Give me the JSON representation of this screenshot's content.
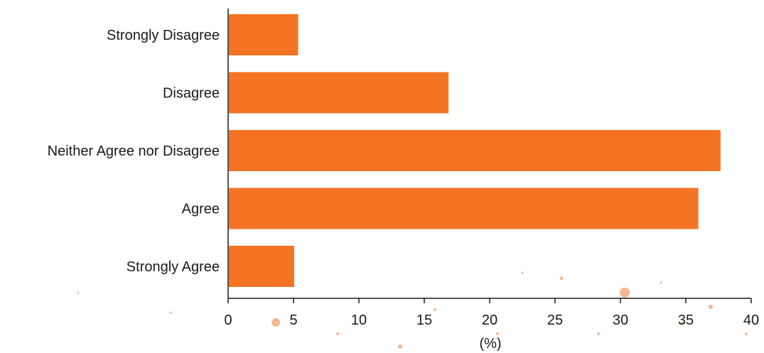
{
  "chart_data": {
    "type": "bar",
    "orientation": "horizontal",
    "categories": [
      "Strongly Disagree",
      "Disagree",
      "Neither Agree nor Disagree",
      "Agree",
      "Strongly Agree"
    ],
    "values": [
      5.3,
      16.8,
      37.6,
      35.9,
      5.0
    ],
    "xlabel": "(%)",
    "ylabel": "",
    "xlim": [
      0,
      40
    ],
    "xticks": [
      "0",
      "5",
      "10",
      "15",
      "20",
      "25",
      "30",
      "35",
      "40"
    ],
    "grid": false,
    "bar_color": "#f47424",
    "axis_color": "#1a1a1a",
    "background_spots_color": "#f0a070"
  }
}
